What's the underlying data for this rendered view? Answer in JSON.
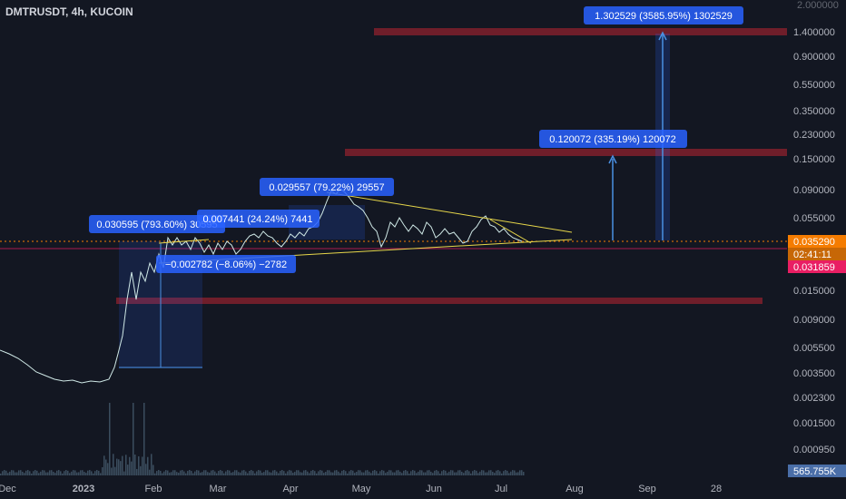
{
  "header": {
    "symbol_line": "DMTRUSDT, 4h, KUCOIN"
  },
  "colors": {
    "background": "#131722",
    "price_line": "#cfe8e6",
    "trendline": "#e6d64a",
    "resistance": "#7a1f2b",
    "measure": "#2962ff",
    "current_price_tag": "#f57c00",
    "timer_tag": "#f57c00",
    "low_tag": "#e91e63",
    "volume": "#3b4d5e"
  },
  "y_axis": {
    "ticks": [
      "1.400000",
      "0.900000",
      "0.550000",
      "0.350000",
      "0.230000",
      "0.150000",
      "0.090000",
      "0.055000",
      "0.015000",
      "0.009000",
      "0.005500",
      "0.003500",
      "0.002300",
      "0.001500",
      "0.000950"
    ],
    "top_cut": "2.000000",
    "current_price": "0.035290",
    "countdown": "02:41:11",
    "low_price": "0.031859",
    "volume_tag": "565.755K"
  },
  "x_axis": {
    "ticks": [
      "Dec",
      "2023",
      "Feb",
      "Mar",
      "Apr",
      "May",
      "Jun",
      "Jul",
      "Aug",
      "Sep",
      "28"
    ]
  },
  "measurements": [
    {
      "label": "1.302529 (3585.95%) 1302529"
    },
    {
      "label": "0.120072 (335.19%) 120072"
    },
    {
      "label": "0.029557 (79.22%) 29557"
    },
    {
      "label": "0.030595 (793.60%) 30595"
    },
    {
      "label": "0.007441 (24.24%) 7441"
    },
    {
      "label": "−0.002782 (−8.06%) −2782"
    }
  ]
}
